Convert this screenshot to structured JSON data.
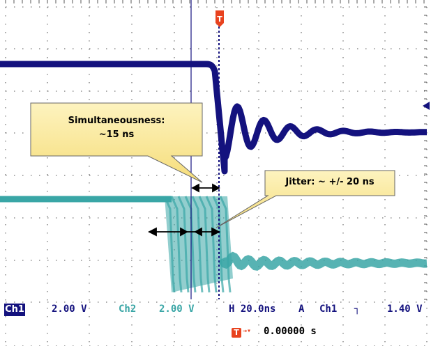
{
  "scope": {
    "ch1_label": "Ch1",
    "ch1_scale": "2.00 V",
    "ch2_label": "Ch2",
    "ch2_scale": "2.00 V",
    "timebase": "H 20.0ns",
    "trigger_mode": "A",
    "trigger_channel": "Ch1",
    "trigger_slope_icon": "falling-edge-icon",
    "trigger_level": "1.40 V",
    "trigger_position": "0.00000 s",
    "trigger_marker_icon": "trigger-T-icon"
  },
  "annotations": {
    "simultaneousness_line1": "Simultaneousness:",
    "simultaneousness_line2": "~15 ns",
    "jitter": "Jitter: ~ +/- 20 ns"
  },
  "colors": {
    "ch1": "#14127e",
    "ch2": "#39a6a6",
    "grid": "#555555",
    "callout_fill": "#fbe99a",
    "trigger": "#e8421e"
  }
}
